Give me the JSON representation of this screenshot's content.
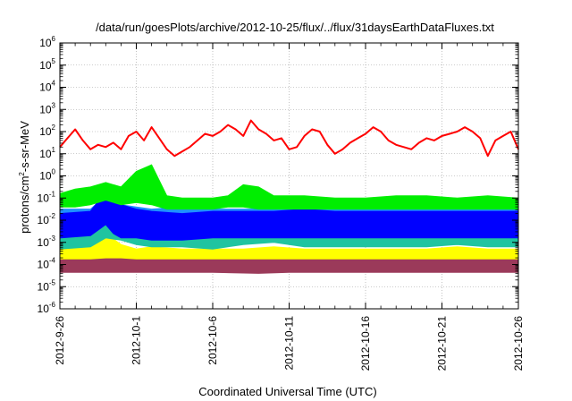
{
  "chart_data": {
    "type": "line",
    "title": "/data/run/goesPlots/archive/2012-10-25/flux/../flux/31daysEarthDataFluxes.txt",
    "xlabel": "Coordinated Universal Time (UTC)",
    "ylabel": {
      "base": "protons/cm",
      "sup": "2",
      "rest": "-s-sr-MeV"
    },
    "x_range_days": [
      0,
      30
    ],
    "ylim_log10": [
      -6,
      6
    ],
    "y_scale": "log",
    "grid": true,
    "legend": "none",
    "x_ticks": [
      {
        "day": 0,
        "label": "2012-9-26"
      },
      {
        "day": 5,
        "label": "2012-10-1"
      },
      {
        "day": 10,
        "label": "2012-10-6"
      },
      {
        "day": 15,
        "label": "2012-10-11"
      },
      {
        "day": 20,
        "label": "2012-10-16"
      },
      {
        "day": 25,
        "label": "2012-10-21"
      },
      {
        "day": 30,
        "label": "2012-10-26"
      }
    ],
    "y_ticks": [
      {
        "exp": -6,
        "base": "10",
        "sup": "-6"
      },
      {
        "exp": -5,
        "base": "10",
        "sup": "-5"
      },
      {
        "exp": -4,
        "base": "10",
        "sup": "-4"
      },
      {
        "exp": -3,
        "base": "10",
        "sup": "-3"
      },
      {
        "exp": -2,
        "base": "10",
        "sup": "-2"
      },
      {
        "exp": -1,
        "base": "10",
        "sup": "-1"
      },
      {
        "exp": 0,
        "base": "10",
        "sup": "0"
      },
      {
        "exp": 1,
        "base": "10",
        "sup": "1"
      },
      {
        "exp": 2,
        "base": "10",
        "sup": "2"
      },
      {
        "exp": 3,
        "base": "10",
        "sup": "3"
      },
      {
        "exp": 4,
        "base": "10",
        "sup": "4"
      },
      {
        "exp": 5,
        "base": "10",
        "sup": "5"
      },
      {
        "exp": 6,
        "base": "10",
        "sup": "6"
      }
    ],
    "series": [
      {
        "color": "#9b3a5a",
        "day": [
          0,
          3,
          5,
          8,
          10,
          13,
          15,
          18,
          20,
          23,
          25,
          28,
          30
        ],
        "log_low": [
          -4.35,
          -4.35,
          -4.35,
          -4.35,
          -4.35,
          -4.4,
          -4.35,
          -4.35,
          -4.35,
          -4.35,
          -4.35,
          -4.35,
          -4.35
        ],
        "log_high": [
          -3.75,
          -3.7,
          -3.7,
          -3.75,
          -3.7,
          -3.75,
          -3.75,
          -3.7,
          -3.75,
          -3.7,
          -3.75,
          -3.7,
          -3.75
        ]
      },
      {
        "color": "#ffff00",
        "day": [
          0,
          2,
          3,
          4,
          5,
          6,
          8,
          10,
          12,
          14,
          16,
          18,
          20,
          22,
          24,
          26,
          28,
          30
        ],
        "log_low": [
          -3.75,
          -3.75,
          -3.7,
          -3.7,
          -3.75,
          -3.75,
          -3.75,
          -3.75,
          -3.75,
          -3.75,
          -3.75,
          -3.75,
          -3.75,
          -3.75,
          -3.75,
          -3.75,
          -3.75,
          -3.75
        ],
        "log_high": [
          -3.3,
          -3.2,
          -2.6,
          -3.1,
          -3.3,
          -3.2,
          -3.3,
          -3.3,
          -3.3,
          -3.2,
          -3.3,
          -3.3,
          -3.3,
          -3.3,
          -3.3,
          -3.2,
          -3.3,
          -3.3
        ]
      },
      {
        "color": "#20c4a0",
        "day": [
          0,
          2,
          3,
          4,
          5,
          6,
          8,
          10,
          12,
          14,
          16,
          18,
          20,
          22,
          24,
          26,
          28,
          30
        ],
        "log_low": [
          -3.3,
          -3.2,
          -2.8,
          -2.9,
          -3.1,
          -3.2,
          -3.2,
          -3.3,
          -3.1,
          -3.0,
          -3.2,
          -3.2,
          -3.2,
          -3.2,
          -3.2,
          -3.1,
          -3.2,
          -3.2
        ],
        "log_high": [
          -2.4,
          -2.4,
          -1.2,
          -1.9,
          -2.0,
          -2.4,
          -2.4,
          -2.4,
          -2.4,
          -2.3,
          -2.4,
          -2.4,
          -2.4,
          -2.4,
          -2.4,
          -2.4,
          -2.4,
          -2.4
        ]
      },
      {
        "color": "#1e90ff",
        "day": [
          0,
          2,
          3,
          4,
          5,
          6,
          8,
          10,
          12,
          14,
          16,
          18,
          20,
          22,
          24,
          26,
          28,
          30
        ],
        "log_low": [
          -2.5,
          -2.5,
          -2.0,
          -2.2,
          -2.4,
          -2.5,
          -2.5,
          -2.5,
          -2.5,
          -2.5,
          -2.5,
          -2.5,
          -2.5,
          -2.5,
          -2.5,
          -2.5,
          -2.5,
          -2.5
        ],
        "log_high": [
          -1.5,
          -1.5,
          -0.9,
          -1.3,
          -1.4,
          -1.5,
          -1.4,
          -1.5,
          -1.5,
          -1.5,
          -1.5,
          -1.5,
          -1.5,
          -1.5,
          -1.5,
          -1.5,
          -1.5,
          -1.5
        ]
      },
      {
        "color": "#0000ff",
        "day": [
          0,
          2,
          3,
          3.5,
          4,
          5,
          6,
          8,
          10,
          12,
          14,
          16,
          18,
          20,
          22,
          24,
          26,
          28,
          30
        ],
        "log_low": [
          -2.8,
          -2.7,
          -2.2,
          -2.6,
          -2.8,
          -2.8,
          -2.9,
          -2.9,
          -2.8,
          -2.8,
          -2.8,
          -2.8,
          -2.8,
          -2.8,
          -2.8,
          -2.8,
          -2.8,
          -2.8,
          -2.8
        ],
        "log_high": [
          -1.7,
          -1.6,
          -0.7,
          -1.0,
          -1.3,
          -1.5,
          -1.6,
          -1.7,
          -1.6,
          -1.6,
          -1.6,
          -1.5,
          -1.6,
          -1.6,
          -1.6,
          -1.6,
          -1.6,
          -1.6,
          -1.6
        ]
      },
      {
        "color": "#00ee00",
        "day": [
          0,
          1,
          2,
          3,
          4,
          5,
          6,
          7,
          8,
          9,
          10,
          11,
          12,
          13,
          14,
          16,
          18,
          20,
          22,
          24,
          26,
          28,
          30
        ],
        "log_low": [
          -1.4,
          -1.4,
          -1.3,
          -1.1,
          -1.3,
          -1.2,
          -1.3,
          -1.5,
          -1.5,
          -1.5,
          -1.5,
          -1.4,
          -1.4,
          -1.5,
          -1.5,
          -1.5,
          -1.5,
          -1.5,
          -1.5,
          -1.5,
          -1.5,
          -1.5,
          -1.5
        ],
        "log_high": [
          -0.8,
          -0.6,
          -0.5,
          -0.3,
          -0.5,
          0.2,
          0.5,
          -0.9,
          -1.0,
          -1.0,
          -1.0,
          -0.9,
          -0.4,
          -0.5,
          -0.9,
          -0.9,
          -1.0,
          -1.0,
          -0.9,
          -0.9,
          -1.0,
          -0.9,
          -1.0
        ]
      },
      {
        "color": "#ff0000",
        "day": [
          0,
          0.5,
          1,
          1.5,
          2,
          2.5,
          3,
          3.5,
          4,
          4.5,
          5,
          5.5,
          6,
          6.5,
          7,
          7.5,
          8,
          8.5,
          9,
          9.5,
          10,
          10.5,
          11,
          11.5,
          12,
          12.5,
          13,
          13.5,
          14,
          14.5,
          15,
          15.5,
          16,
          16.5,
          17,
          17.5,
          18,
          18.5,
          19,
          19.5,
          20,
          20.5,
          21,
          21.5,
          22,
          22.5,
          23,
          23.5,
          24,
          24.5,
          25,
          25.5,
          26,
          26.5,
          27,
          27.5,
          28,
          28.5,
          29,
          29.5,
          30
        ],
        "log_mid": [
          1.3,
          1.7,
          2.1,
          1.6,
          1.2,
          1.4,
          1.3,
          1.5,
          1.2,
          1.8,
          2.0,
          1.6,
          2.2,
          1.7,
          1.2,
          0.9,
          1.1,
          1.3,
          1.6,
          1.9,
          1.8,
          2.0,
          2.3,
          2.1,
          1.8,
          2.5,
          2.1,
          1.9,
          1.6,
          1.7,
          1.2,
          1.3,
          1.8,
          2.1,
          2.0,
          1.4,
          1.0,
          1.2,
          1.5,
          1.7,
          1.9,
          2.2,
          2.0,
          1.6,
          1.4,
          1.3,
          1.2,
          1.5,
          1.7,
          1.6,
          1.8,
          1.9,
          2.0,
          2.2,
          2.0,
          1.7,
          0.9,
          1.6,
          1.8,
          2.0,
          1.2
        ]
      }
    ]
  }
}
